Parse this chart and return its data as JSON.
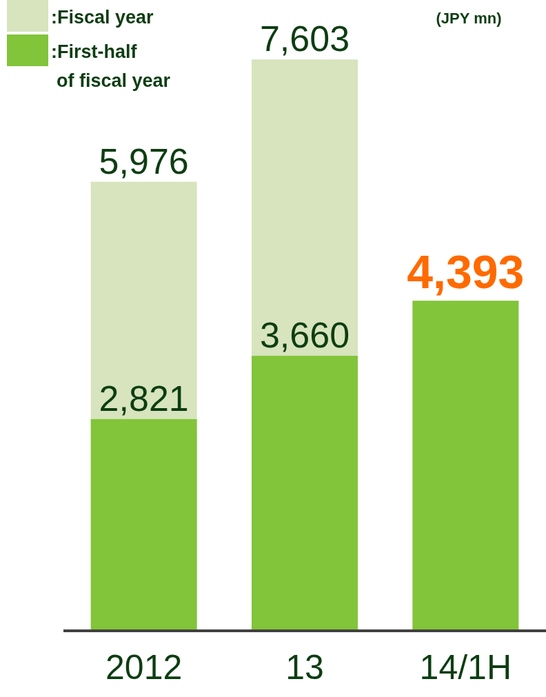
{
  "chart_data": {
    "type": "bar",
    "categories": [
      "2012",
      "13",
      "14/1H"
    ],
    "stacked": true,
    "series": [
      {
        "name": ":First-half\nof fiscal year",
        "color": "#82c43a",
        "values": [
          2821,
          3660,
          4393
        ],
        "value_labels": [
          "2,821",
          "3,660",
          null
        ]
      },
      {
        "name": ":Fiscal year",
        "color": "#d7e4bd",
        "values": [
          3155,
          3943,
          null
        ]
      }
    ],
    "totals": [
      "5,976",
      "7,603",
      "4,393"
    ],
    "legend": "top left",
    "annotations": [
      "(JPY mn)"
    ]
  }
}
